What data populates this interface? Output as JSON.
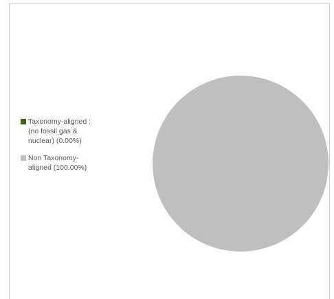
{
  "chart_data": {
    "type": "pie",
    "title": "",
    "slices": [
      {
        "label": "Taxonomy-aligned :\n(no fossil gas &\nnuclear) (0.00%)",
        "value": 0.0,
        "color": "#3e5a1c"
      },
      {
        "label": "Non Taxonomy-\naligned (100.00%)",
        "value": 100.0,
        "color": "#bfbfbf"
      }
    ],
    "legend_position": "left"
  }
}
